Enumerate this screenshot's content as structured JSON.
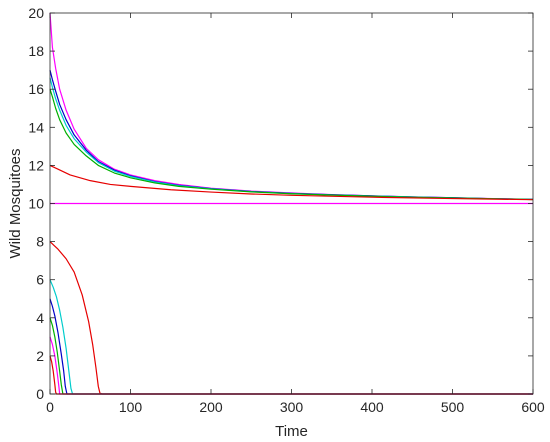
{
  "chart_data": {
    "type": "line",
    "title": "",
    "xlabel": "Time",
    "ylabel": "Wild Mosquitoes",
    "xlim": [
      0,
      600
    ],
    "ylim": [
      0,
      20
    ],
    "x_ticks": [
      0,
      100,
      200,
      300,
      400,
      500,
      600
    ],
    "y_ticks": [
      0,
      2,
      4,
      6,
      8,
      10,
      12,
      14,
      16,
      18,
      20
    ],
    "grid": false,
    "legend": "none",
    "equilibrium": 10,
    "series": [
      {
        "color": "#ff00ff",
        "x": [
          0,
          3,
          7,
          12,
          20,
          30,
          45,
          60,
          80,
          100,
          130,
          160,
          200,
          250,
          300,
          350,
          400,
          450,
          500,
          550,
          600
        ],
        "y": [
          20.0,
          18.2,
          17.1,
          16.0,
          14.9,
          13.9,
          12.9,
          12.3,
          11.8,
          11.5,
          11.2,
          11.0,
          10.8,
          10.65,
          10.55,
          10.47,
          10.4,
          10.35,
          10.3,
          10.26,
          10.22
        ]
      },
      {
        "color": "#0000c8",
        "x": [
          0,
          3,
          7,
          12,
          20,
          30,
          45,
          60,
          80,
          100,
          130,
          160,
          200,
          250,
          300,
          350,
          400,
          450,
          500,
          550,
          600
        ],
        "y": [
          17.0,
          16.5,
          15.9,
          15.2,
          14.4,
          13.6,
          12.8,
          12.2,
          11.75,
          11.45,
          11.15,
          10.95,
          10.78,
          10.63,
          10.53,
          10.46,
          10.4,
          10.34,
          10.3,
          10.25,
          10.22
        ]
      },
      {
        "color": "#00cccc",
        "x": [
          0,
          3,
          7,
          12,
          20,
          30,
          45,
          60,
          80,
          100,
          130,
          160,
          200,
          250,
          300,
          350,
          400,
          450,
          500,
          550,
          600
        ],
        "y": [
          16.6,
          16.1,
          15.5,
          14.9,
          14.1,
          13.4,
          12.7,
          12.15,
          11.7,
          11.42,
          11.13,
          10.93,
          10.77,
          10.62,
          10.52,
          10.45,
          10.39,
          10.34,
          10.29,
          10.25,
          10.21
        ]
      },
      {
        "color": "#00b000",
        "x": [
          0,
          3,
          7,
          12,
          20,
          30,
          45,
          60,
          80,
          100,
          130,
          160,
          200,
          250,
          300,
          350,
          400,
          450,
          500,
          550,
          600
        ],
        "y": [
          16.0,
          15.6,
          15.0,
          14.4,
          13.7,
          13.1,
          12.5,
          12.0,
          11.6,
          11.35,
          11.08,
          10.9,
          10.75,
          10.61,
          10.51,
          10.44,
          10.38,
          10.33,
          10.29,
          10.25,
          10.21
        ]
      },
      {
        "color": "#e60000",
        "x": [
          0,
          10,
          25,
          50,
          75,
          100,
          150,
          200,
          250,
          300,
          400,
          500,
          600
        ],
        "y": [
          12.0,
          11.8,
          11.5,
          11.2,
          11.0,
          10.9,
          10.72,
          10.6,
          10.5,
          10.43,
          10.33,
          10.26,
          10.2
        ]
      },
      {
        "color": "#ff00ff",
        "x": [
          0,
          600
        ],
        "y": [
          10.0,
          10.0
        ]
      },
      {
        "color": "#e60000",
        "x": [
          0,
          5,
          10,
          20,
          30,
          40,
          48,
          53,
          57,
          60,
          62,
          65,
          600
        ],
        "y": [
          8.0,
          7.8,
          7.6,
          7.1,
          6.4,
          5.2,
          3.8,
          2.6,
          1.4,
          0.4,
          0.05,
          0.0,
          0.0
        ]
      },
      {
        "color": "#00cccc",
        "x": [
          0,
          4,
          8,
          12,
          16,
          20,
          24,
          26,
          28,
          600
        ],
        "y": [
          6.0,
          5.6,
          5.1,
          4.4,
          3.5,
          2.4,
          1.0,
          0.3,
          0.0,
          0.0
        ]
      },
      {
        "color": "#0000c8",
        "x": [
          0,
          3,
          6,
          10,
          14,
          17,
          19,
          21,
          600
        ],
        "y": [
          5.0,
          4.6,
          4.1,
          3.2,
          2.1,
          1.2,
          0.4,
          0.0,
          0.0
        ]
      },
      {
        "color": "#00b000",
        "x": [
          0,
          3,
          6,
          9,
          12,
          14,
          16,
          600
        ],
        "y": [
          4.0,
          3.6,
          3.0,
          2.2,
          1.2,
          0.5,
          0.0,
          0.0
        ]
      },
      {
        "color": "#ff00ff",
        "x": [
          0,
          3,
          6,
          9,
          11,
          12,
          600
        ],
        "y": [
          3.0,
          2.6,
          2.0,
          1.1,
          0.4,
          0.0,
          0.0
        ]
      },
      {
        "color": "#e60000",
        "x": [
          0,
          2,
          4,
          6,
          7,
          8,
          600
        ],
        "y": [
          2.0,
          1.7,
          1.2,
          0.5,
          0.1,
          0.0,
          0.0
        ]
      }
    ]
  }
}
